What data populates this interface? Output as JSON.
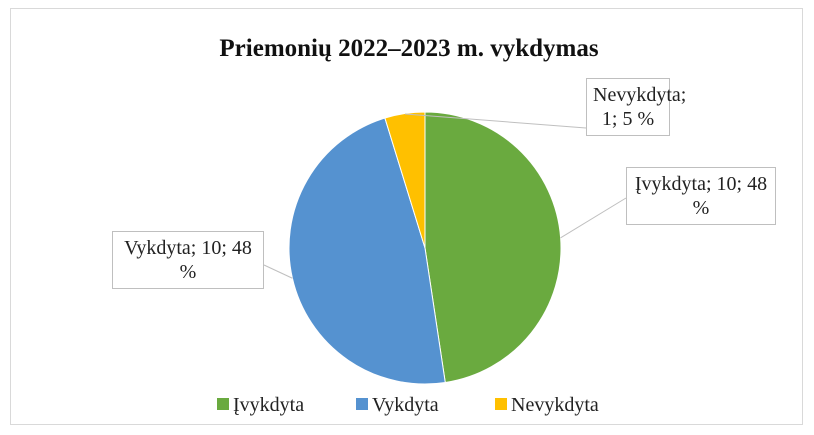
{
  "chart_data": {
    "type": "pie",
    "title": "Priemonių 2022–2023 m. vykdymas",
    "categories": [
      "Įvykdyta",
      "Vykdyta",
      "Nevykdyta"
    ],
    "values": [
      10,
      10,
      1
    ],
    "value_labels": [
      "Įvykdyta; 10; 48 %",
      "Vykdyta; 10; 48 %",
      "Nevykdyta; 1; 5 %"
    ],
    "colors": [
      "#6aaa3f",
      "#5592d0",
      "#ffc000"
    ],
    "legend": "bottom"
  }
}
